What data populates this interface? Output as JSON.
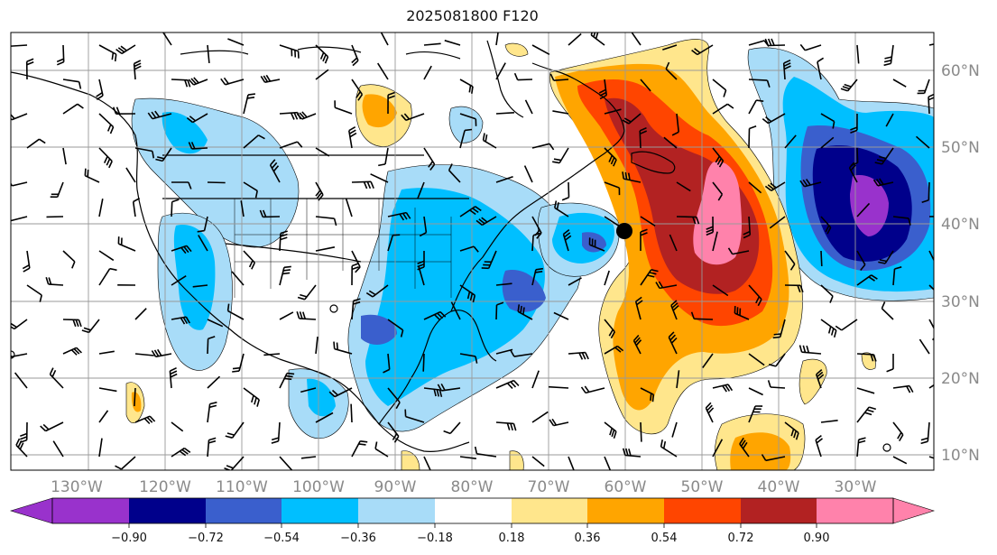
{
  "title": "2025081800 F120",
  "map": {
    "lon_labels": [
      "130°W",
      "120°W",
      "110°W",
      "100°W",
      "90°W",
      "80°W",
      "70°W",
      "60°W",
      "50°W",
      "40°W",
      "30°W"
    ],
    "lat_labels": [
      "60°N",
      "50°N",
      "40°N",
      "30°N",
      "20°N",
      "10°N"
    ]
  },
  "colorbar": {
    "labels": [
      "−0.90",
      "−0.72",
      "−0.54",
      "−0.36",
      "−0.18",
      "0.18",
      "0.36",
      "0.54",
      "0.72",
      "0.90"
    ],
    "colors": [
      "#9932cc",
      "#00008b",
      "#3a5fcd",
      "#00bfff",
      "#a8dcf8",
      "#ffffff",
      "#ffe68c",
      "#ffa500",
      "#ff4500",
      "#b22222",
      "#ff82ab"
    ]
  }
}
